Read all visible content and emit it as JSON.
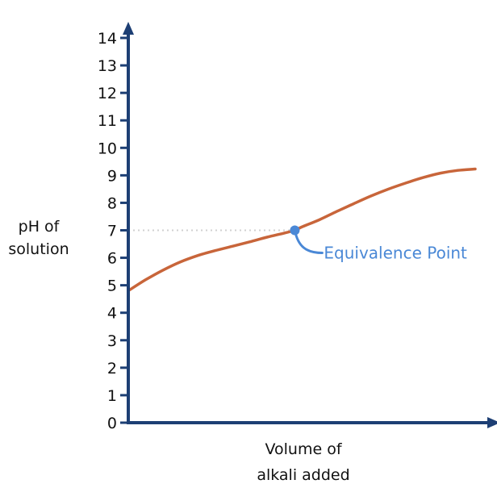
{
  "chart_data": {
    "type": "line",
    "xlabel_lines": [
      "Volume of",
      "alkali added"
    ],
    "ylabel_lines": [
      "pH of",
      "solution"
    ],
    "ylim": [
      0,
      14
    ],
    "yticks": [
      "0",
      "1",
      "2",
      "3",
      "4",
      "5",
      "6",
      "7",
      "8",
      "9",
      "10",
      "11",
      "12",
      "13",
      "14"
    ],
    "x_tick_labels": "none",
    "grid": false,
    "series": [
      {
        "x": [
          0.0,
          0.05,
          0.1,
          0.15,
          0.2,
          0.25,
          0.3,
          0.35,
          0.4,
          0.45,
          0.48,
          0.5,
          0.55,
          0.6,
          0.65,
          0.7,
          0.75,
          0.8,
          0.85,
          0.9,
          0.95,
          1.0
        ],
        "y": [
          4.8,
          5.2,
          5.55,
          5.85,
          6.08,
          6.26,
          6.42,
          6.58,
          6.75,
          6.9,
          7.0,
          7.12,
          7.38,
          7.68,
          7.97,
          8.25,
          8.5,
          8.72,
          8.92,
          9.08,
          9.18,
          9.23
        ]
      }
    ],
    "reference_line": {
      "y": 7,
      "style": "dotted"
    },
    "annotation": {
      "label": "Equivalence Point",
      "x": 0.48,
      "y": 7.0
    },
    "colors": {
      "curve": "#c8653a",
      "axes": "#1d3f74",
      "annotation": "#4a88d6",
      "reference_line": "#d0d0d0",
      "text": "#111111"
    }
  }
}
